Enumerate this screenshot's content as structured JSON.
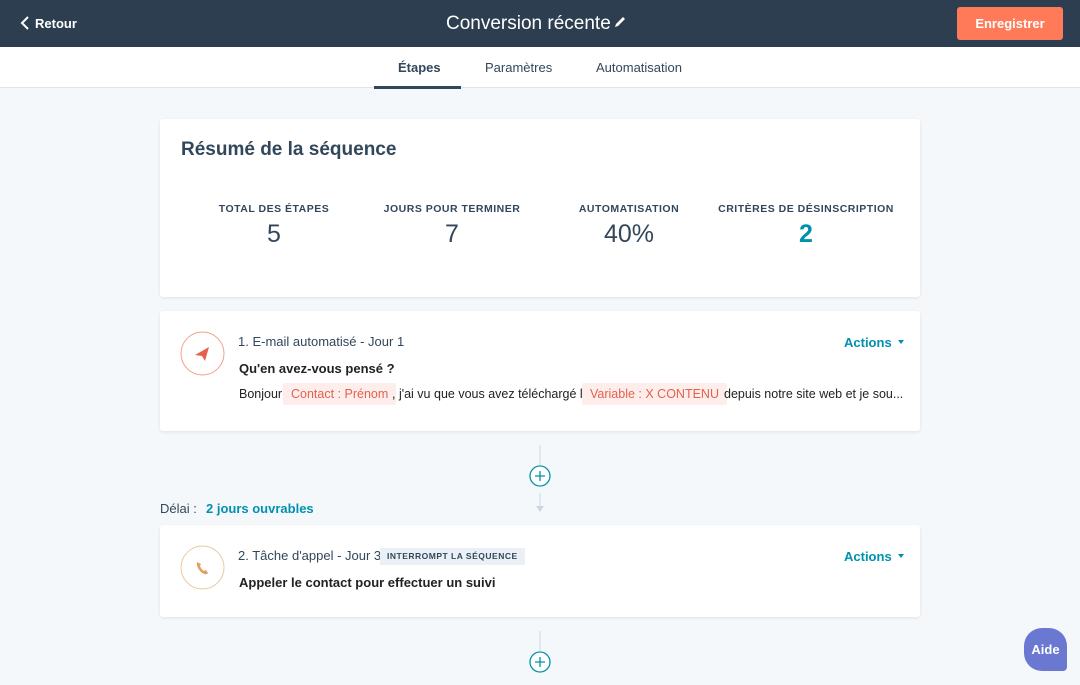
{
  "header": {
    "back": "Retour",
    "title": "Conversion récente",
    "save": "Enregistrer"
  },
  "tabs": [
    "Étapes",
    "Paramètres",
    "Automatisation"
  ],
  "summary": {
    "title": "Résumé de la séquence",
    "stats": [
      {
        "label": "TOTAL DES ÉTAPES",
        "value": 5
      },
      {
        "label": "JOURS POUR TERMINER",
        "value": 7
      },
      {
        "label": "AUTOMATISATION",
        "value": "40%"
      },
      {
        "label": "CRITÈRES DE DÉSINSCRIPTION",
        "value": 2
      }
    ]
  },
  "steps": [
    {
      "label": "1. E-mail automatisé - Jour 1",
      "actions": "Actions",
      "subject": "Qu'en avez-vous pensé ?",
      "body": [
        "Bonjour",
        "Contact : Prénom",
        ", j'ai vu que vous avez téléchargé le",
        "Variable : X CONTENU",
        "depuis notre site web et je sou..."
      ]
    },
    {
      "label": "2. Tâche d'appel - Jour 3",
      "badge": "INTERROMPT LA SÉQUENCE",
      "actions": "Actions",
      "subject": "Appeler le contact pour effectuer un suivi"
    }
  ],
  "delay": {
    "label": "Délai :",
    "value": "2 jours ouvrables"
  },
  "help": "Aide"
}
